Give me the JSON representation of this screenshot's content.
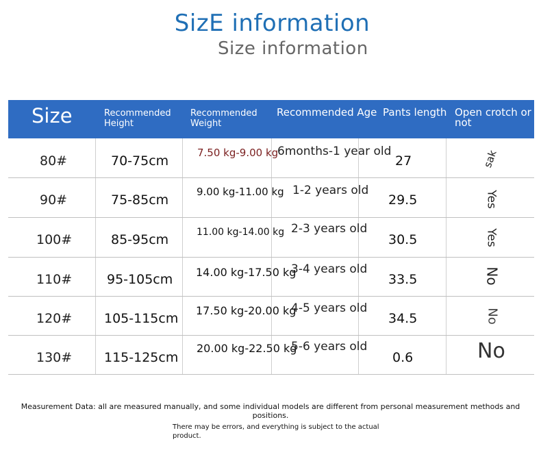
{
  "title": "SizE information",
  "subtitle": "Size information",
  "colors": {
    "accent": "#1f6fb5",
    "header_bg": "#2f6cc2",
    "weight_first": "#7a1f1f"
  },
  "headers": {
    "size": "Size",
    "height_l1": "Recommended",
    "height_l2": "Height",
    "weight_l1": "Recommended",
    "weight_l2": "Weight",
    "age": "Recommended Age",
    "pants": "Pants length",
    "open_l1": "Open crotch or",
    "open_l2": "not"
  },
  "rows": [
    {
      "size": "80#",
      "height": "70-75cm",
      "weight": "7.50 kg-9.00 kg",
      "age": "6months-1 year old",
      "pants": "27",
      "open": "sak"
    },
    {
      "size": "90#",
      "height": "75-85cm",
      "weight": "9.00 kg-11.00 kg",
      "age": "1-2 years old",
      "pants": "29.5",
      "open": "Yes"
    },
    {
      "size": "100#",
      "height": "85-95cm",
      "weight": "11.00 kg-14.00 kg",
      "age": "2-3 years old",
      "pants": "30.5",
      "open": "Yes"
    },
    {
      "size": "110#",
      "height": "95-105cm",
      "weight": "14.00 kg-17.50 kg",
      "age": "3-4 years old",
      "pants": "33.5",
      "open": "No"
    },
    {
      "size": "120#",
      "height": "105-115cm",
      "weight": "17.50 kg-20.00 kg",
      "age": "4-5 years old",
      "pants": "34.5",
      "open": "No"
    },
    {
      "size": "130#",
      "height": "115-125cm",
      "weight": "20.00 kg-22.50 kg",
      "age": "5-6 years old",
      "pants": "0.6",
      "open": "No"
    }
  ],
  "footer": {
    "line1": "Measurement Data: all are measured manually, and some individual models are different from personal measurement methods and positions.",
    "line2": "There may be errors, and everything is subject to the actual product."
  }
}
